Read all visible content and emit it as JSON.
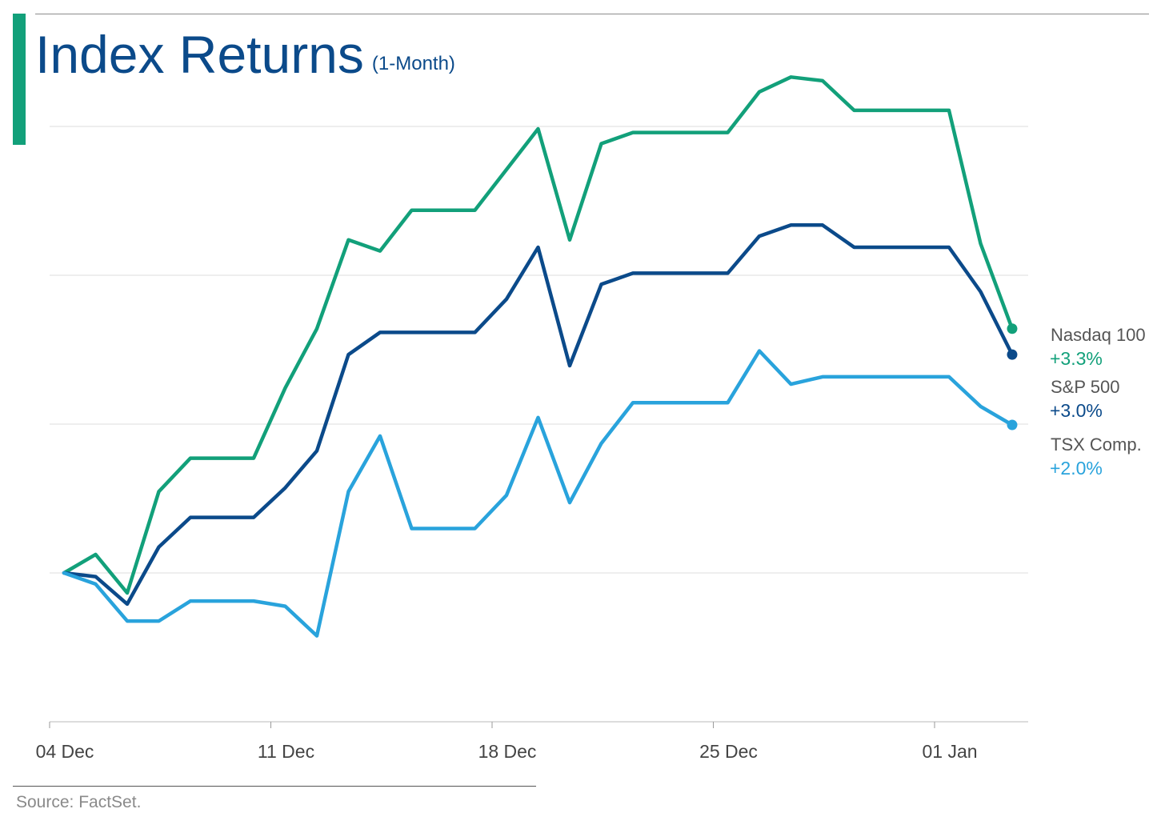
{
  "header": {
    "title": "Index Returns",
    "subtitle": "(1-Month)",
    "title_color": "#0b4a8a",
    "accent_color": "#12a07a"
  },
  "footer": {
    "source": "Source: FactSet."
  },
  "chart_data": {
    "type": "line",
    "title": "Index Returns",
    "subtitle": "(1-Month)",
    "x_ticks": [
      "04 Dec",
      "11 Dec",
      "18 Dec",
      "25 Dec",
      "01 Jan"
    ],
    "grid": "horizontal",
    "legend_position": "right (end labels)",
    "x": [
      "2023-12-04",
      "2023-12-05",
      "2023-12-06",
      "2023-12-07",
      "2023-12-08",
      "2023-12-09",
      "2023-12-10",
      "2023-12-11",
      "2023-12-12",
      "2023-12-13",
      "2023-12-14",
      "2023-12-15",
      "2023-12-16",
      "2023-12-17",
      "2023-12-18",
      "2023-12-19",
      "2023-12-20",
      "2023-12-21",
      "2023-12-22",
      "2023-12-23",
      "2023-12-24",
      "2023-12-25",
      "2023-12-26",
      "2023-12-27",
      "2023-12-28",
      "2023-12-29",
      "2023-12-30",
      "2023-12-31",
      "2024-01-01",
      "2024-01-02",
      "2024-01-03"
    ],
    "series": [
      {
        "name": "Nasdaq 100",
        "end_label": "+3.3%",
        "color": "#12a07a",
        "values": [
          0.0,
          0.25,
          -0.27,
          1.1,
          1.55,
          1.55,
          1.55,
          2.5,
          3.3,
          4.5,
          4.35,
          4.9,
          4.9,
          4.9,
          5.45,
          6.0,
          4.5,
          5.8,
          5.95,
          5.95,
          5.95,
          5.95,
          6.5,
          6.7,
          6.65,
          6.25,
          6.25,
          6.25,
          6.25,
          4.45,
          3.3
        ]
      },
      {
        "name": "S&P 500",
        "end_label": "+3.0%",
        "color": "#0b4a8a",
        "values": [
          0.0,
          -0.05,
          -0.42,
          0.35,
          0.75,
          0.75,
          0.75,
          1.15,
          1.65,
          2.95,
          3.25,
          3.25,
          3.25,
          3.25,
          3.7,
          4.4,
          2.8,
          3.9,
          4.05,
          4.05,
          4.05,
          4.05,
          4.55,
          4.7,
          4.7,
          4.4,
          4.4,
          4.4,
          4.4,
          3.8,
          2.95
        ]
      },
      {
        "name": "TSX Comp.",
        "end_label": "+2.0%",
        "color": "#29a3dc",
        "values": [
          0.0,
          -0.15,
          -0.65,
          -0.65,
          -0.38,
          -0.38,
          -0.38,
          -0.45,
          -0.85,
          1.1,
          1.85,
          0.6,
          0.6,
          0.6,
          1.05,
          2.1,
          0.95,
          1.75,
          2.3,
          2.3,
          2.3,
          2.3,
          3.0,
          2.55,
          2.65,
          2.65,
          2.65,
          2.65,
          2.65,
          2.25,
          2.0
        ]
      }
    ]
  }
}
